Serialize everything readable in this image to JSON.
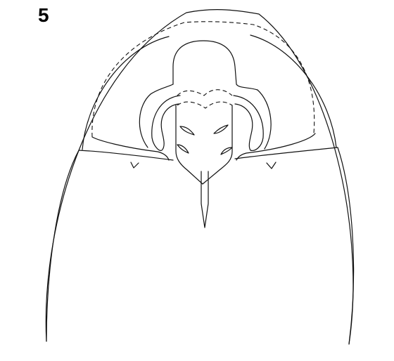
{
  "figure": {
    "panel_label": "5",
    "colors": {
      "background": "#ffffff",
      "line": "#111111"
    }
  }
}
